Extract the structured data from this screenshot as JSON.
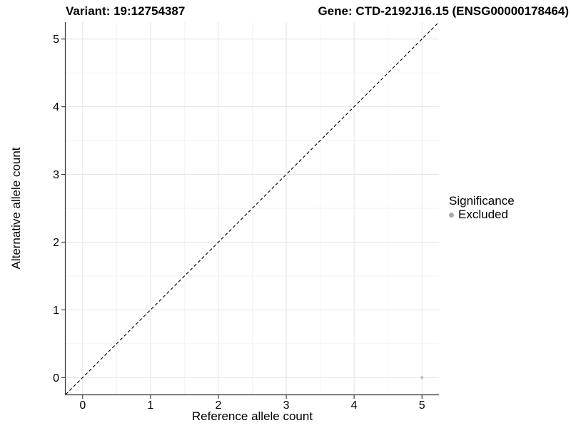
{
  "header": {
    "variant_title": "Variant: 19:12754387",
    "gene_title": "Gene: CTD-2192J16.15 (ENSG00000178464)"
  },
  "chart_data": {
    "type": "scatter",
    "title_left": "Variant: 19:12754387",
    "title_right": "Gene: CTD-2192J16.15 (ENSG00000178464)",
    "xlabel": "Reference allele count",
    "ylabel": "Alternative allele count",
    "xlim": [
      -0.25,
      5.25
    ],
    "ylim": [
      -0.25,
      5.25
    ],
    "xticks": [
      0,
      1,
      2,
      3,
      4,
      5
    ],
    "yticks": [
      0,
      1,
      2,
      3,
      4,
      5
    ],
    "xticks_minor": [
      0.5,
      1.5,
      2.5,
      3.5,
      4.5
    ],
    "yticks_minor": [
      0.5,
      1.5,
      2.5,
      3.5,
      4.5
    ],
    "grid": "major+minor",
    "identity_line": {
      "slope": 1,
      "intercept": 0,
      "style": "dashed",
      "color": "#000000"
    },
    "series": [
      {
        "name": "Excluded",
        "marker": "circle",
        "color": "#c2c2c2",
        "points": [
          [
            5,
            0
          ]
        ]
      }
    ],
    "legend": {
      "title": "Significance",
      "position": "right",
      "items": [
        {
          "label": "Excluded",
          "color": "#ababab"
        }
      ]
    },
    "colors": {
      "grid_major": "#e4e4e4",
      "grid_minor": "#f2f2f2",
      "axis_line": "#333333",
      "tick_mark": "#333333",
      "tick_label": "#000000"
    }
  }
}
